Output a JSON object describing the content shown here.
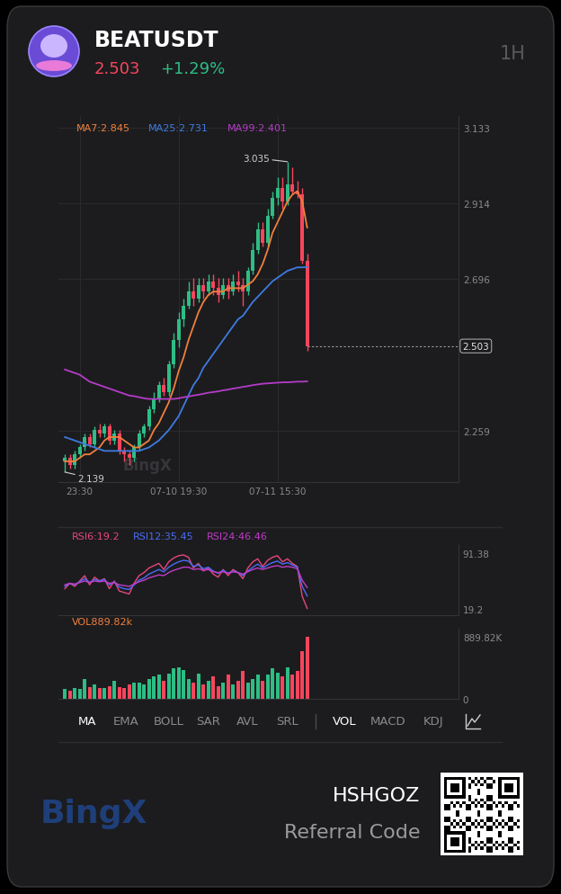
{
  "header": {
    "symbol": "BEATUSDT",
    "price": "2.503",
    "change": "+1.29%",
    "interval": "1H"
  },
  "watermark": "BingX",
  "chart_data": [
    {
      "type": "candlestick",
      "categories": [
        null,
        null,
        null,
        "23:30",
        null,
        null,
        null,
        null,
        null,
        null,
        null,
        null,
        null,
        null,
        null,
        null,
        null,
        null,
        null,
        null,
        null,
        null,
        null,
        "07-10 19:30",
        null,
        null,
        null,
        null,
        null,
        null,
        null,
        null,
        null,
        null,
        null,
        null,
        null,
        null,
        null,
        null,
        null,
        null,
        null,
        "07-11 15:30",
        null,
        null,
        null,
        null,
        null,
        null
      ],
      "xlim": [
        -1.3,
        79.6
      ],
      "ylim": [
        2.11,
        3.167
      ],
      "yticks": [
        2.259,
        2.696,
        2.914,
        3.133
      ],
      "grid": true,
      "open": [
        2.17,
        2.18,
        2.16,
        2.19,
        2.21,
        2.24,
        2.22,
        2.26,
        2.25,
        2.27,
        2.23,
        2.25,
        2.2,
        2.19,
        2.18,
        2.21,
        2.25,
        2.27,
        2.32,
        2.35,
        2.39,
        2.37,
        2.45,
        2.52,
        2.58,
        2.62,
        2.66,
        2.64,
        2.68,
        2.66,
        2.69,
        2.67,
        2.65,
        2.68,
        2.66,
        2.69,
        2.68,
        2.66,
        2.72,
        2.78,
        2.84,
        2.8,
        2.88,
        2.93,
        2.96,
        2.92,
        2.97,
        2.95,
        2.94,
        2.75
      ],
      "high": [
        2.19,
        2.19,
        2.2,
        2.22,
        2.25,
        2.25,
        2.27,
        2.28,
        2.28,
        2.28,
        2.26,
        2.26,
        2.21,
        2.2,
        2.22,
        2.26,
        2.28,
        2.33,
        2.37,
        2.4,
        2.41,
        2.46,
        2.54,
        2.6,
        2.64,
        2.69,
        2.7,
        2.7,
        2.7,
        2.71,
        2.71,
        2.7,
        2.7,
        2.7,
        2.71,
        2.72,
        2.7,
        2.73,
        2.8,
        2.86,
        2.86,
        2.9,
        2.95,
        2.99,
        2.99,
        3.035,
        3.02,
        2.98,
        2.96,
        2.77
      ],
      "low": [
        2.139,
        2.15,
        2.15,
        2.18,
        2.2,
        2.21,
        2.21,
        2.24,
        2.24,
        2.22,
        2.22,
        2.19,
        2.17,
        2.16,
        2.17,
        2.2,
        2.24,
        2.26,
        2.31,
        2.34,
        2.36,
        2.36,
        2.44,
        2.5,
        2.56,
        2.61,
        2.62,
        2.63,
        2.64,
        2.65,
        2.65,
        2.63,
        2.64,
        2.64,
        2.65,
        2.66,
        2.62,
        2.65,
        2.71,
        2.77,
        2.79,
        2.79,
        2.87,
        2.91,
        2.9,
        2.91,
        2.94,
        2.93,
        2.74,
        2.49
      ],
      "close": [
        2.18,
        2.16,
        2.19,
        2.21,
        2.24,
        2.22,
        2.26,
        2.25,
        2.27,
        2.23,
        2.25,
        2.2,
        2.19,
        2.18,
        2.21,
        2.25,
        2.27,
        2.32,
        2.35,
        2.39,
        2.37,
        2.45,
        2.52,
        2.58,
        2.62,
        2.66,
        2.64,
        2.68,
        2.66,
        2.69,
        2.67,
        2.65,
        2.68,
        2.66,
        2.69,
        2.68,
        2.66,
        2.72,
        2.78,
        2.84,
        2.8,
        2.88,
        2.93,
        2.96,
        2.92,
        2.97,
        2.95,
        2.94,
        2.75,
        2.503
      ],
      "colors": [
        "#2ebd85",
        "#f6465d",
        "#2ebd85",
        "#2ebd85",
        "#2ebd85",
        "#f6465d",
        "#2ebd85",
        "#f6465d",
        "#2ebd85",
        "#f6465d",
        "#2ebd85",
        "#f6465d",
        "#f6465d",
        "#f6465d",
        "#2ebd85",
        "#2ebd85",
        "#2ebd85",
        "#2ebd85",
        "#2ebd85",
        "#2ebd85",
        "#f6465d",
        "#2ebd85",
        "#2ebd85",
        "#2ebd85",
        "#2ebd85",
        "#2ebd85",
        "#f6465d",
        "#2ebd85",
        "#f6465d",
        "#2ebd85",
        "#f6465d",
        "#f6465d",
        "#2ebd85",
        "#f6465d",
        "#2ebd85",
        "#f6465d",
        "#f6465d",
        "#2ebd85",
        "#2ebd85",
        "#2ebd85",
        "#f6465d",
        "#2ebd85",
        "#2ebd85",
        "#2ebd85",
        "#f6465d",
        "#2ebd85",
        "#f6465d",
        "#f6465d",
        "#f6465d",
        "#f6465d"
      ],
      "series": [
        {
          "name": "MA7:2.845",
          "color": "#f0803c",
          "values": [
            2.17,
            2.17,
            2.17,
            2.18,
            2.19,
            2.19,
            2.2,
            2.21,
            2.23,
            2.24,
            2.24,
            2.24,
            2.23,
            2.22,
            2.21,
            2.21,
            2.22,
            2.23,
            2.26,
            2.28,
            2.31,
            2.34,
            2.38,
            2.43,
            2.47,
            2.52,
            2.56,
            2.6,
            2.63,
            2.65,
            2.66,
            2.66,
            2.66,
            2.67,
            2.67,
            2.67,
            2.67,
            2.68,
            2.69,
            2.71,
            2.74,
            2.78,
            2.83,
            2.86,
            2.89,
            2.92,
            2.94,
            2.95,
            2.92,
            2.845
          ]
        },
        {
          "name": "MA25:2.731",
          "color": "#3e7be0",
          "values": [
            2.24,
            2.235,
            2.23,
            2.225,
            2.22,
            2.215,
            2.21,
            2.205,
            2.2,
            2.2,
            2.2,
            2.2,
            2.2,
            2.2,
            2.2,
            2.2,
            2.205,
            2.21,
            2.22,
            2.23,
            2.245,
            2.26,
            2.28,
            2.3,
            2.33,
            2.36,
            2.39,
            2.41,
            2.44,
            2.46,
            2.48,
            2.5,
            2.52,
            2.54,
            2.56,
            2.58,
            2.59,
            2.61,
            2.63,
            2.645,
            2.66,
            2.675,
            2.69,
            2.7,
            2.71,
            2.72,
            2.725,
            2.73,
            2.73,
            2.731
          ]
        },
        {
          "name": "MA99:2.401",
          "color": "#b43cc8",
          "values": [
            2.435,
            2.43,
            2.425,
            2.42,
            2.41,
            2.4,
            2.395,
            2.39,
            2.385,
            2.38,
            2.375,
            2.37,
            2.365,
            2.36,
            2.358,
            2.355,
            2.352,
            2.35,
            2.35,
            2.35,
            2.35,
            2.35,
            2.35,
            2.352,
            2.355,
            2.357,
            2.36,
            2.362,
            2.365,
            2.368,
            2.37,
            2.372,
            2.375,
            2.377,
            2.38,
            2.382,
            2.385,
            2.387,
            2.39,
            2.392,
            2.394,
            2.395,
            2.396,
            2.397,
            2.398,
            2.398,
            2.399,
            2.4,
            2.4,
            2.401
          ]
        }
      ],
      "annotations": [
        {
          "text": "3.035",
          "x": 45,
          "y": 3.035
        },
        {
          "text": "2.139",
          "x": 0,
          "y": 2.139
        }
      ],
      "last_price": 2.503
    },
    {
      "type": "line",
      "xlim": [
        -1.3,
        79.6
      ],
      "ylim": [
        10.4,
        103.1
      ],
      "yticks": [
        19.2,
        91.38
      ],
      "tick_labels": "y",
      "series": [
        {
          "name": "RSI6:19.2",
          "color": "#e8467c",
          "values": [
            45,
            52,
            48,
            55,
            62,
            50,
            60,
            55,
            58,
            45,
            55,
            42,
            40,
            38,
            52,
            62,
            66,
            72,
            75,
            78,
            70,
            80,
            85,
            88,
            89,
            86,
            72,
            78,
            68,
            72,
            64,
            60,
            70,
            62,
            70,
            66,
            58,
            72,
            80,
            84,
            74,
            82,
            86,
            88,
            80,
            84,
            78,
            74,
            35,
            19.2
          ]
        },
        {
          "name": "RSI12:35.45",
          "color": "#4a6cf7",
          "values": [
            48,
            52,
            50,
            54,
            58,
            53,
            57,
            55,
            57,
            50,
            54,
            47,
            45,
            44,
            50,
            56,
            59,
            64,
            67,
            70,
            67,
            73,
            77,
            80,
            82,
            81,
            74,
            76,
            71,
            73,
            68,
            65,
            69,
            65,
            68,
            66,
            62,
            68,
            73,
            77,
            72,
            76,
            79,
            81,
            77,
            79,
            76,
            73,
            48,
            35.45
          ]
        },
        {
          "name": "RSI24:46.46",
          "color": "#c03cc8",
          "values": [
            50,
            52,
            51,
            53,
            55,
            53,
            55,
            54,
            55,
            52,
            53,
            50,
            49,
            48,
            51,
            54,
            56,
            59,
            61,
            63,
            62,
            66,
            69,
            71,
            73,
            73,
            70,
            71,
            69,
            70,
            67,
            66,
            67,
            65,
            67,
            66,
            64,
            67,
            70,
            72,
            70,
            72,
            74,
            75,
            73,
            74,
            73,
            71,
            56,
            46.46
          ]
        }
      ]
    },
    {
      "type": "bar",
      "title": "VOL889.82k",
      "xlim": [
        -1.3,
        79.6
      ],
      "ylim": [
        0,
        1003
      ],
      "yticks": [
        0,
        {
          "value": 889.82,
          "label": "889.82K"
        }
      ],
      "tick_labels": "y",
      "values": [
        137,
        114,
        148,
        137,
        285,
        171,
        205,
        160,
        148,
        182,
        251,
        171,
        160,
        205,
        228,
        228,
        205,
        285,
        319,
        342,
        251,
        365,
        433,
        456,
        410,
        285,
        228,
        365,
        205,
        251,
        319,
        182,
        228,
        342,
        205,
        251,
        399,
        228,
        285,
        342,
        251,
        342,
        433,
        376,
        319,
        456,
        342,
        399,
        684,
        889.82
      ],
      "colors": [
        "#2ebd85",
        "#f6465d",
        "#2ebd85",
        "#2ebd85",
        "#2ebd85",
        "#f6465d",
        "#2ebd85",
        "#f6465d",
        "#2ebd85",
        "#f6465d",
        "#2ebd85",
        "#f6465d",
        "#f6465d",
        "#f6465d",
        "#2ebd85",
        "#2ebd85",
        "#2ebd85",
        "#2ebd85",
        "#2ebd85",
        "#2ebd85",
        "#f6465d",
        "#2ebd85",
        "#2ebd85",
        "#2ebd85",
        "#2ebd85",
        "#2ebd85",
        "#f6465d",
        "#2ebd85",
        "#f6465d",
        "#2ebd85",
        "#f6465d",
        "#f6465d",
        "#2ebd85",
        "#f6465d",
        "#2ebd85",
        "#f6465d",
        "#f6465d",
        "#2ebd85",
        "#2ebd85",
        "#2ebd85",
        "#f6465d",
        "#2ebd85",
        "#2ebd85",
        "#2ebd85",
        "#f6465d",
        "#2ebd85",
        "#f6465d",
        "#f6465d",
        "#f6465d",
        "#f6465d"
      ]
    }
  ],
  "toolbar": {
    "indicators": [
      "MA",
      "EMA",
      "BOLL",
      "SAR",
      "AVL",
      "SRL"
    ],
    "sub_indicators": [
      "VOL",
      "MACD",
      "KDJ"
    ]
  },
  "footer": {
    "brand": "BingX",
    "referral_code": "HSHGOZ",
    "referral_label": "Referral Code"
  }
}
